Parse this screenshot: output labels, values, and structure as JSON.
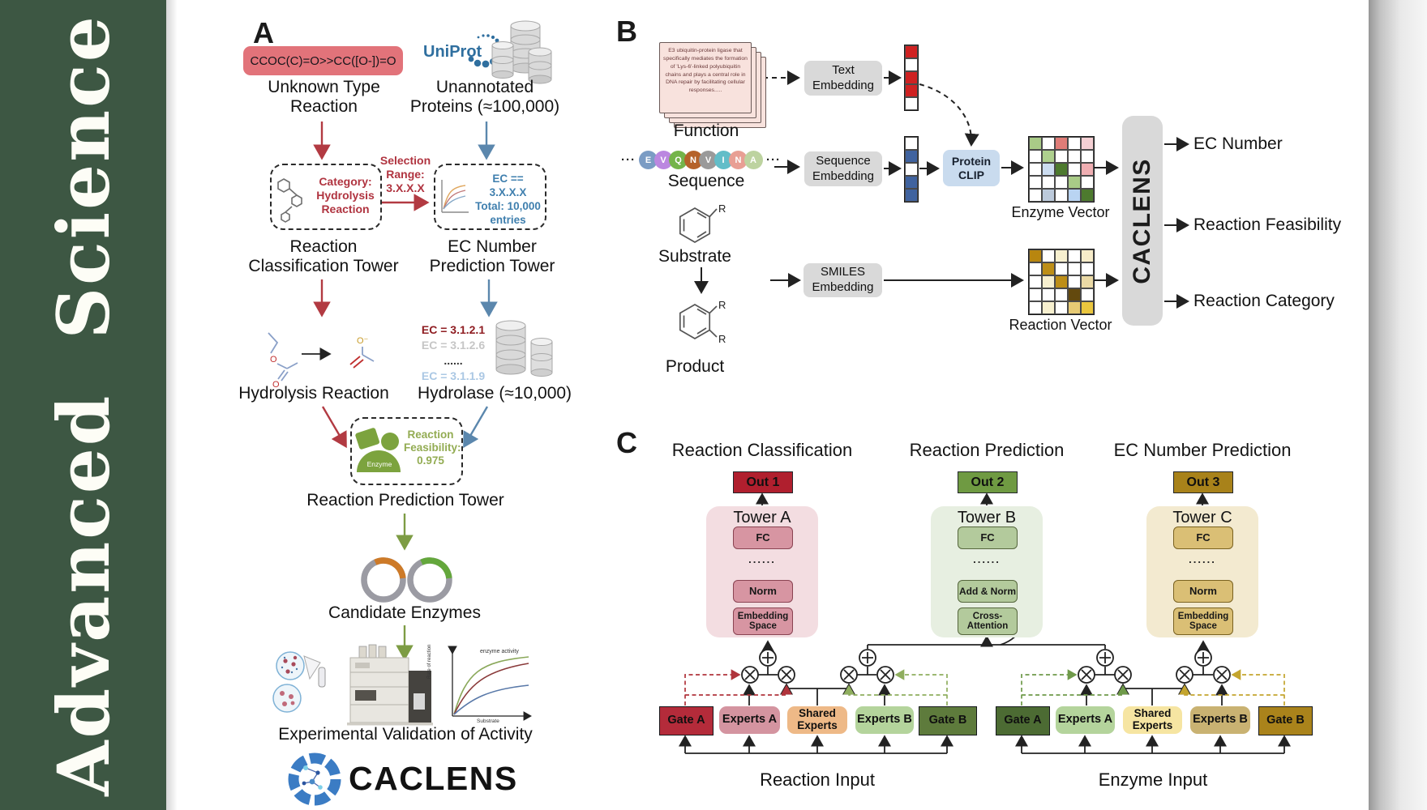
{
  "sidebar": {
    "title": "Advanced  Science"
  },
  "panel_a": {
    "label": "A",
    "smiles_box": "CCOC(C)=O>>CC([O-])=O",
    "unknown_reaction_label": "Unknown Type Reaction",
    "uniprot_logo": "UniProt",
    "unannotated_label": "Unannotated Proteins (≈100,000)",
    "classification_box": "Category: Hydrolysis Reaction",
    "selection_range": "Selection Range: 3.X.X.X",
    "ec_box": {
      "line1": "EC == 3.X.X.X",
      "line2": "Total: 10,000",
      "line3": "entries"
    },
    "classification_tower_label": "Reaction Classification Tower",
    "ec_tower_label": "EC Number Prediction Tower",
    "hydrolysis_label": "Hydrolysis Reaction",
    "ec_list": [
      "EC = 3.1.2.1",
      "EC = 3.1.2.6",
      "......",
      "EC = 3.1.1.9"
    ],
    "ec_list_colors": [
      "#8f1d22",
      "#c6c6c6",
      "#333333",
      "#abc8e4"
    ],
    "hydrolase_label": "Hydrolase (≈10,000)",
    "enzyme_icon_label": "Enzyme",
    "feasibility_text": "Reaction Feasibility: 0.975",
    "prediction_tower_label": "Reaction Prediction Tower",
    "candidate_label": "Candidate Enzymes",
    "validation_label": "Experimental Validation of Activity",
    "activity_plot": {
      "curve_label": "enzyme activity",
      "y_label": "Rate of reaction",
      "x_label": "Substrate"
    },
    "logo_text": "CACLENS"
  },
  "panel_b": {
    "label": "B",
    "function_card_text": "E3 ubiquitin-protein ligase that specifically mediates the formation of 'Lys-6'-linked polyubiquitin chains and plays a central role in DNA repair by facilitating cellular responses.....",
    "function_label": "Function",
    "ellipsis": "···",
    "sequence": [
      {
        "letter": "E",
        "color": "#7b9cc4"
      },
      {
        "letter": "V",
        "color": "#bb87e0"
      },
      {
        "letter": "Q",
        "color": "#74b44a"
      },
      {
        "letter": "N",
        "color": "#b5622a"
      },
      {
        "letter": "V",
        "color": "#9a9a9a"
      },
      {
        "letter": "I",
        "color": "#62bdc8"
      },
      {
        "letter": "N",
        "color": "#e89f94"
      },
      {
        "letter": "A",
        "color": "#bdd3a0"
      }
    ],
    "sequence_label": "Sequence",
    "substrate_label": "Substrate",
    "product_label": "Product",
    "r_label": "R",
    "text_embedding": "Text Embedding",
    "sequence_embedding": "Sequence Embedding",
    "smiles_embedding": "SMILES Embedding",
    "protein_clip": "Protein CLIP",
    "text_vector": [
      "#cf2121",
      "#ffffff",
      "#cf2121",
      "#cf2121",
      "#ffffff"
    ],
    "sequence_vector": [
      "#ffffff",
      "#40639f",
      "#ffffff",
      "#40639f",
      "#40639f"
    ],
    "enzyme_matrix": [
      [
        "#a9cb87",
        "#ffffff",
        "#e07d78",
        "#ffffff",
        "#f5d0d4"
      ],
      [
        "#ffffff",
        "#aed08e",
        "#ffffff",
        "#ffffff",
        "#ffffff"
      ],
      [
        "#ffffff",
        "#ccddf1",
        "#4d7a2e",
        "#ffffff",
        "#efaeb2"
      ],
      [
        "#ffffff",
        "#ffffff",
        "#ffffff",
        "#a9cb87",
        "#ffffff"
      ],
      [
        "#ffffff",
        "#bccadb",
        "#ffffff",
        "#b9d4f2",
        "#4d7a2e"
      ]
    ],
    "enzyme_vector_label": "Enzyme Vector",
    "reaction_matrix": [
      [
        "#b8860f",
        "#ffffff",
        "#f7f0cf",
        "#ffffff",
        "#f7ecc9"
      ],
      [
        "#ffffff",
        "#bd8e17",
        "#ffffff",
        "#ffffff",
        "#ffffff"
      ],
      [
        "#ffffff",
        "#f7f0cf",
        "#bd8e17",
        "#ffffff",
        "#ead9a5"
      ],
      [
        "#ffffff",
        "#ffffff",
        "#ffffff",
        "#63490e",
        "#ffffff"
      ],
      [
        "#ffffff",
        "#f7f0cf",
        "#ffffff",
        "#e6ca74",
        "#eac63e"
      ]
    ],
    "reaction_vector_label": "Reaction Vector",
    "model_name": "CACLENS",
    "outputs": [
      "EC Number",
      "Reaction Feasibility",
      "Reaction Category"
    ]
  },
  "panel_c": {
    "label": "C",
    "columns": [
      {
        "title": "Reaction Classification",
        "out": "Out 1",
        "tower": "Tower A",
        "fc": "FC",
        "dots": "......",
        "mid": "Norm",
        "bottom": "Embedding Space"
      },
      {
        "title": "Reaction Prediction",
        "out": "Out 2",
        "tower": "Tower B",
        "fc": "FC",
        "dots": "......",
        "mid": "Add & Norm",
        "bottom": "Cross-Attention"
      },
      {
        "title": "EC Number Prediction",
        "out": "Out 3",
        "tower": "Tower C",
        "fc": "FC",
        "dots": "......",
        "mid": "Norm",
        "bottom": "Embedding Space"
      }
    ],
    "groups": [
      {
        "gate_a": "Gate A",
        "experts_a": "Experts A",
        "shared": "Shared Experts",
        "experts_b": "Experts B",
        "gate_b": "Gate B",
        "input_label": "Reaction Input"
      },
      {
        "gate_a": "Gate A",
        "experts_a": "Experts A",
        "shared": "Shared Experts",
        "experts_b": "Experts B",
        "gate_b": "Gate B",
        "input_label": "Enzyme Input"
      }
    ]
  },
  "colors": {
    "arrow_red": "#b23a42",
    "arrow_blue": "#5b87ad",
    "arrow_green": "#7d9c44",
    "sidebar_green": "#3d5743"
  }
}
